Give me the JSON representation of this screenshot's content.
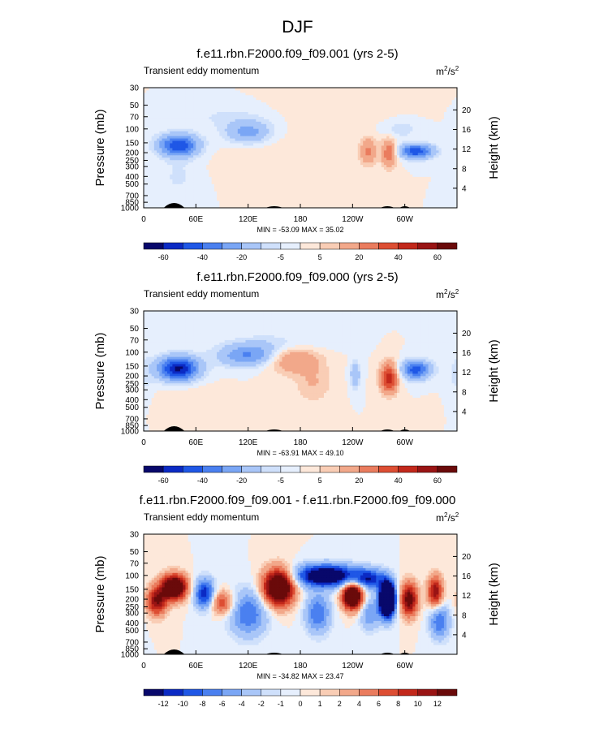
{
  "title": "DJF",
  "chart_data": [
    {
      "type": "heatmap",
      "title": "f.e11.rbn.F2000.f09_f09.001 (yrs 2-5)",
      "subtitle_left": "Transient eddy momentum",
      "units": "m",
      "units_sup1": "2",
      "units_mid": "/s",
      "units_sup2": "2",
      "ylabel": "Pressure (mb)",
      "ylabel_right": "Height (km)",
      "x_ticks": [
        "0",
        "60E",
        "120E",
        "180",
        "120W",
        "60W"
      ],
      "y_ticks": [
        "30",
        "50",
        "70",
        "100",
        "150",
        "200",
        "250",
        "300",
        "400",
        "500",
        "700",
        "850",
        "1000"
      ],
      "y_ticks_right": [
        "20",
        "16",
        "12",
        "8",
        "4"
      ],
      "minmax": "MIN = -53.09  MAX = 35.02",
      "colorbar_labels": [
        "-60",
        "-40",
        "-20",
        "-5",
        "5",
        "20",
        "40",
        "60"
      ],
      "min": -53.09,
      "max": 35.02
    },
    {
      "type": "heatmap",
      "title": "f.e11.rbn.F2000.f09_f09.000 (yrs 2-5)",
      "subtitle_left": "Transient eddy momentum",
      "units": "m",
      "units_sup1": "2",
      "units_mid": "/s",
      "units_sup2": "2",
      "ylabel": "Pressure (mb)",
      "ylabel_right": "Height (km)",
      "x_ticks": [
        "0",
        "60E",
        "120E",
        "180",
        "120W",
        "60W"
      ],
      "y_ticks": [
        "30",
        "50",
        "70",
        "100",
        "150",
        "200",
        "250",
        "300",
        "400",
        "500",
        "700",
        "850",
        "1000"
      ],
      "y_ticks_right": [
        "20",
        "16",
        "12",
        "8",
        "4"
      ],
      "minmax": "MIN = -63.91  MAX = 49.10",
      "colorbar_labels": [
        "-60",
        "-40",
        "-20",
        "-5",
        "5",
        "20",
        "40",
        "60"
      ],
      "min": -63.91,
      "max": 49.1
    },
    {
      "type": "heatmap",
      "title": "f.e11.rbn.F2000.f09_f09.001 - f.e11.rbn.F2000.f09_f09.000",
      "subtitle_left": "Transient eddy momentum",
      "units": "m",
      "units_sup1": "2",
      "units_mid": "/s",
      "units_sup2": "2",
      "ylabel": "Pressure (mb)",
      "ylabel_right": "Height (km)",
      "x_ticks": [
        "0",
        "60E",
        "120E",
        "180",
        "120W",
        "60W"
      ],
      "y_ticks": [
        "30",
        "50",
        "70",
        "100",
        "150",
        "200",
        "250",
        "300",
        "400",
        "500",
        "700",
        "850",
        "1000"
      ],
      "y_ticks_right": [
        "20",
        "16",
        "12",
        "8",
        "4"
      ],
      "minmax": "MIN = -34.82  MAX = 23.47",
      "colorbar_labels": [
        "-12",
        "-10",
        "-8",
        "-6",
        "-4",
        "-2",
        "-1",
        "0",
        "1",
        "2",
        "4",
        "6",
        "8",
        "10",
        "12"
      ],
      "min": -34.82,
      "max": 23.47
    }
  ],
  "colors": {
    "bar16": [
      "#08086b",
      "#0b2ac4",
      "#1f57e6",
      "#4a80f0",
      "#7aa6f5",
      "#a9c6f8",
      "#cfe0fb",
      "#e6effd",
      "#fde8da",
      "#f9cdb5",
      "#f2a88a",
      "#ea7c5e",
      "#dd4e33",
      "#c2281b",
      "#991414",
      "#6a0a0a"
    ],
    "background": "#fde9da",
    "land": "#000000"
  }
}
